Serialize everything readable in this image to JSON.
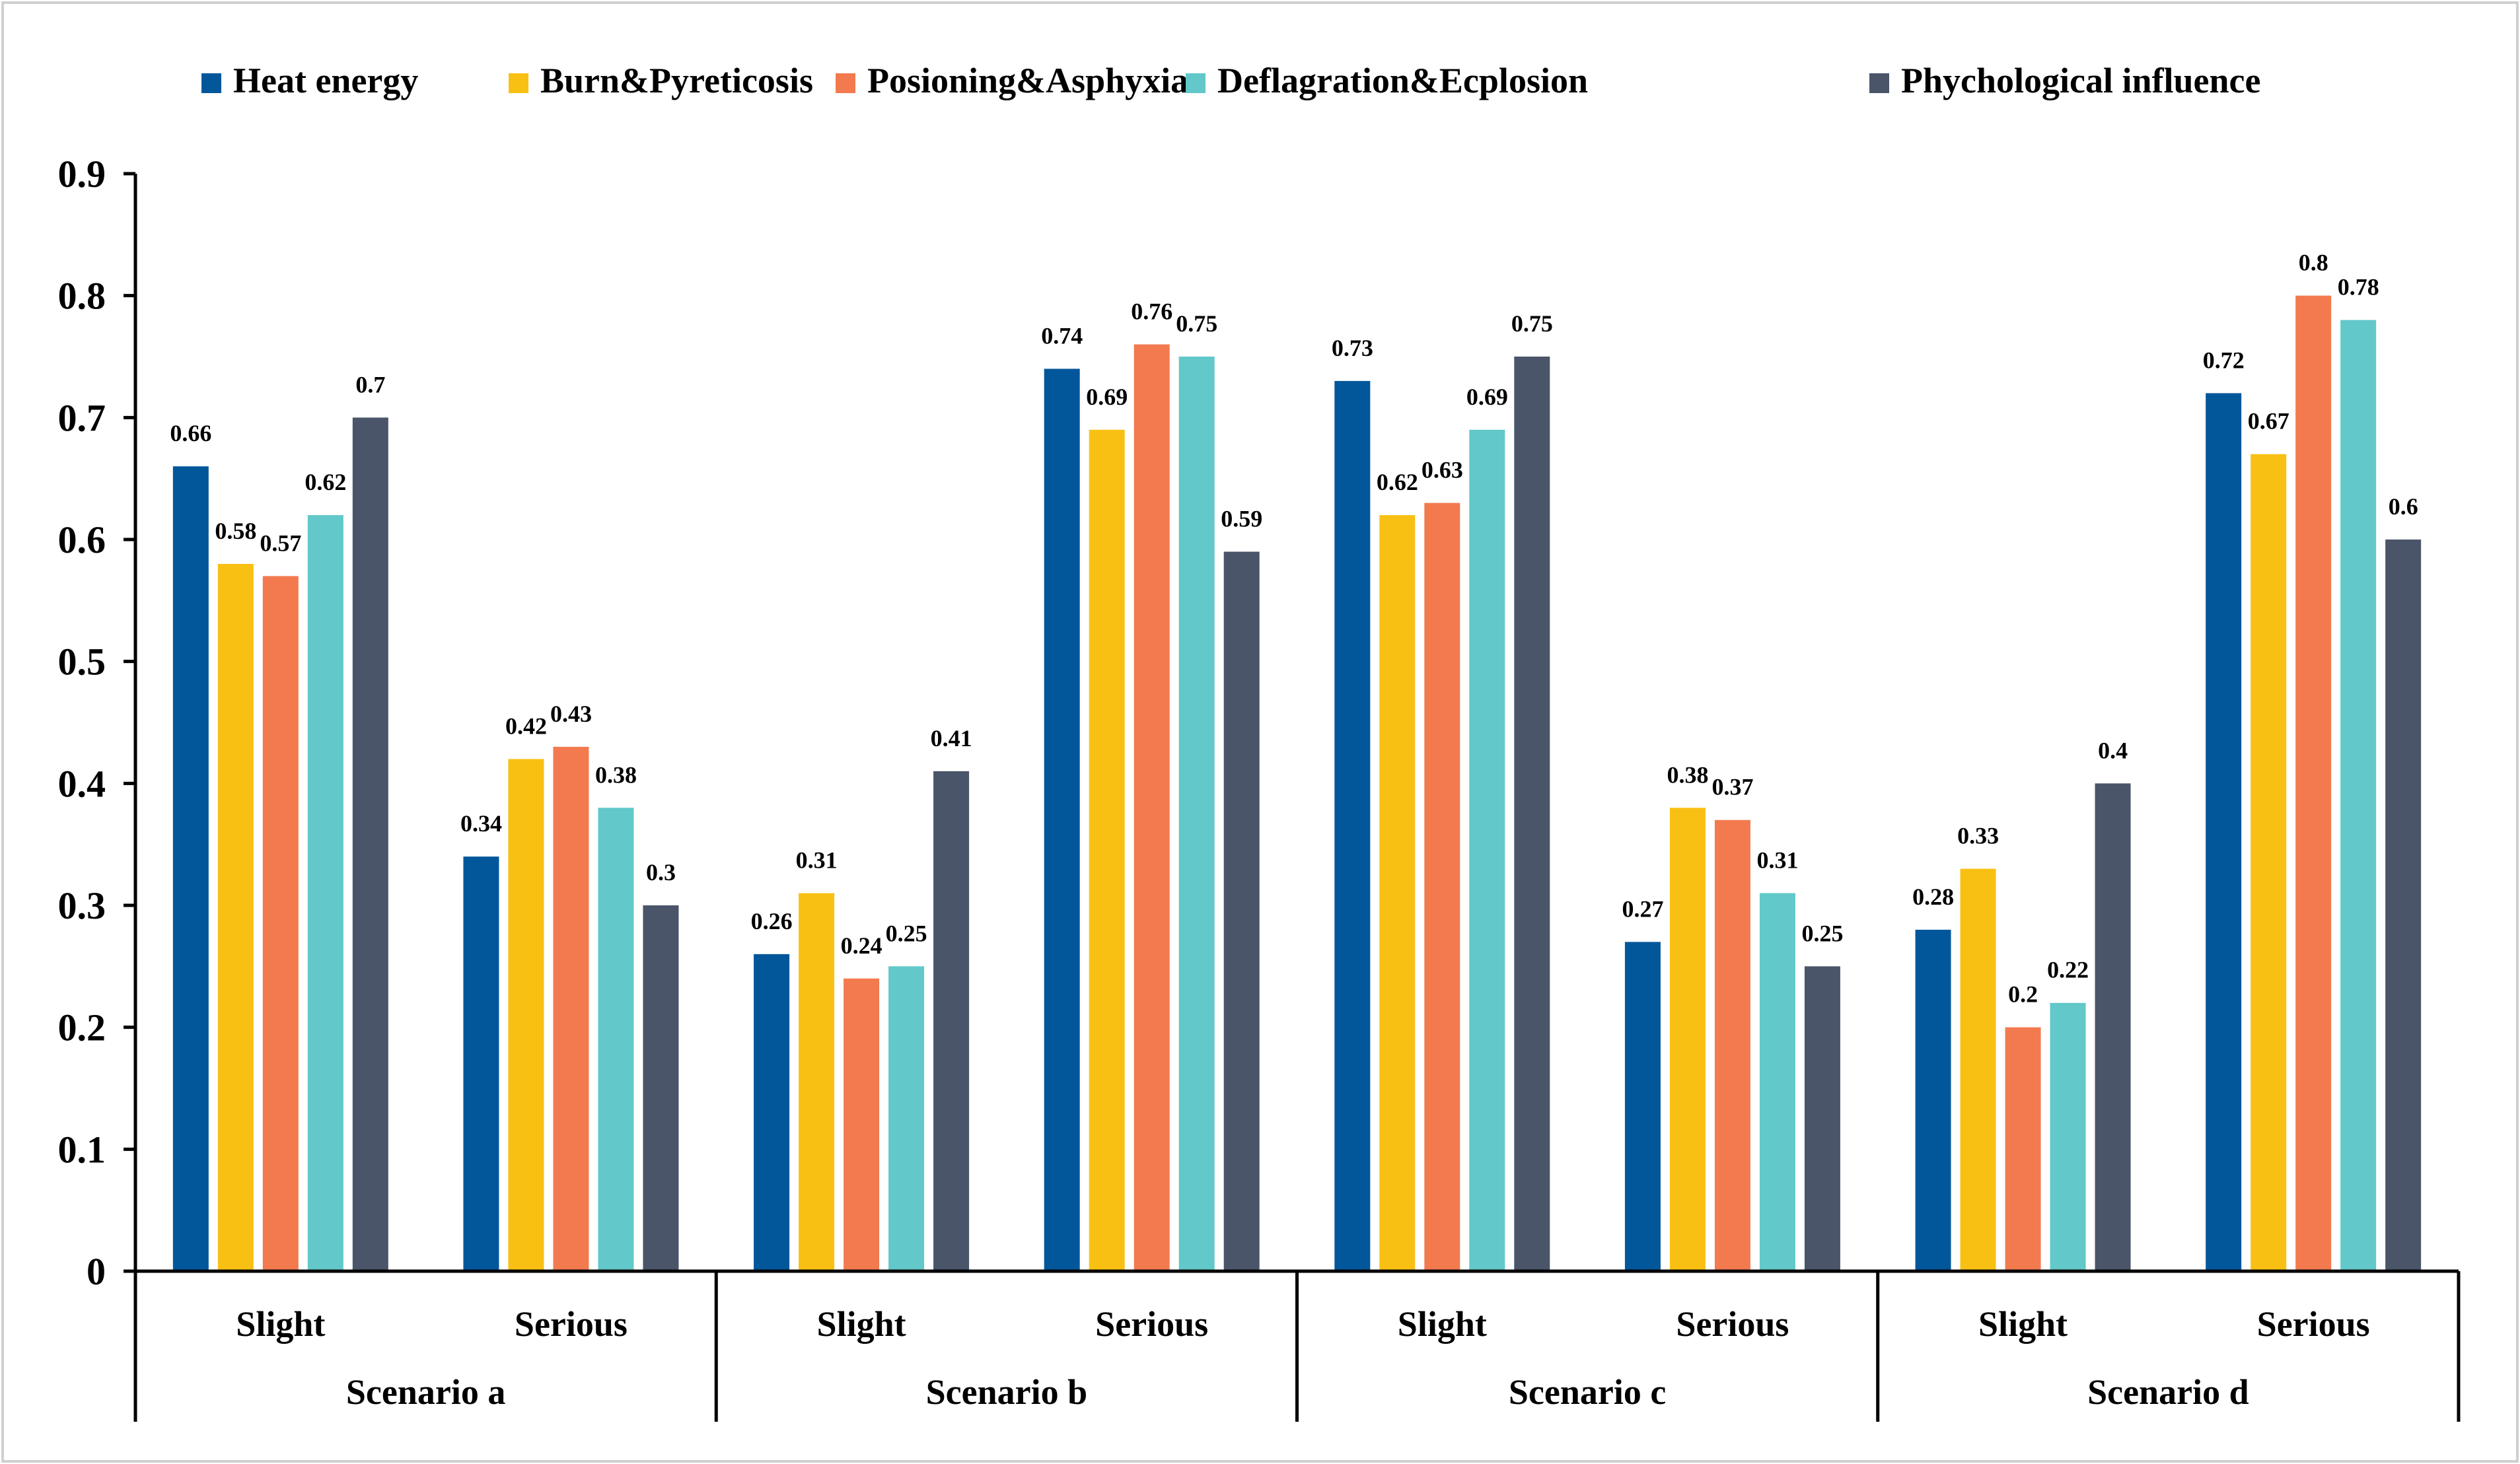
{
  "chart_data": {
    "type": "bar",
    "title": "",
    "xlabel": "",
    "ylabel": "",
    "ylim": [
      0,
      0.9
    ],
    "yticks": [
      "0",
      "0.1",
      "0.2",
      "0.3",
      "0.4",
      "0.5",
      "0.6",
      "0.7",
      "0.8",
      "0.9"
    ],
    "grid": false,
    "legend_position": "top",
    "groups": [
      "Scenario a",
      "Scenario b",
      "Scenario c",
      "Scenario d"
    ],
    "subcategories": [
      "Slight",
      "Serious"
    ],
    "categories": [
      "Scenario a Slight",
      "Scenario a Serious",
      "Scenario b Slight",
      "Scenario b Serious",
      "Scenario c Slight",
      "Scenario c Serious",
      "Scenario d Slight",
      "Scenario d Serious"
    ],
    "series": [
      {
        "name": "Heat energy",
        "color": "#02579B",
        "values": [
          0.66,
          0.34,
          0.26,
          0.74,
          0.73,
          0.27,
          0.28,
          0.72
        ]
      },
      {
        "name": "Burn&Pyreticosis",
        "color": "#F9C014",
        "values": [
          0.58,
          0.42,
          0.31,
          0.69,
          0.62,
          0.38,
          0.33,
          0.67
        ]
      },
      {
        "name": "Posioning&Asphyxia",
        "color": "#F27A4E",
        "values": [
          0.57,
          0.43,
          0.24,
          0.76,
          0.63,
          0.37,
          0.2,
          0.8
        ]
      },
      {
        "name": "Deflagration&Ecplosion",
        "color": "#62C8C9",
        "values": [
          0.62,
          0.38,
          0.25,
          0.75,
          0.69,
          0.31,
          0.22,
          0.78
        ]
      },
      {
        "name": "Phychological influence",
        "color": "#4A5569",
        "values": [
          0.7,
          0.3,
          0.41,
          0.59,
          0.75,
          0.25,
          0.4,
          0.6
        ]
      }
    ],
    "data_labels": [
      [
        "0.66",
        "0.34",
        "0.26",
        "0.74",
        "0.73",
        "0.27",
        "0.28",
        "0.72"
      ],
      [
        "0.58",
        "0.42",
        "0.31",
        "0.69",
        "0.62",
        "0.38",
        "0.33",
        "0.67"
      ],
      [
        "0.57",
        "0.43",
        "0.24",
        "0.76",
        "0.63",
        "0.37",
        "0.2",
        "0.8"
      ],
      [
        "0.62",
        "0.38",
        "0.25",
        "0.75",
        "0.69",
        "0.31",
        "0.22",
        "0.78"
      ],
      [
        "0.7",
        "0.3",
        "0.41",
        "0.59",
        "0.75",
        "0.25",
        "0.4",
        "0.6"
      ]
    ]
  }
}
